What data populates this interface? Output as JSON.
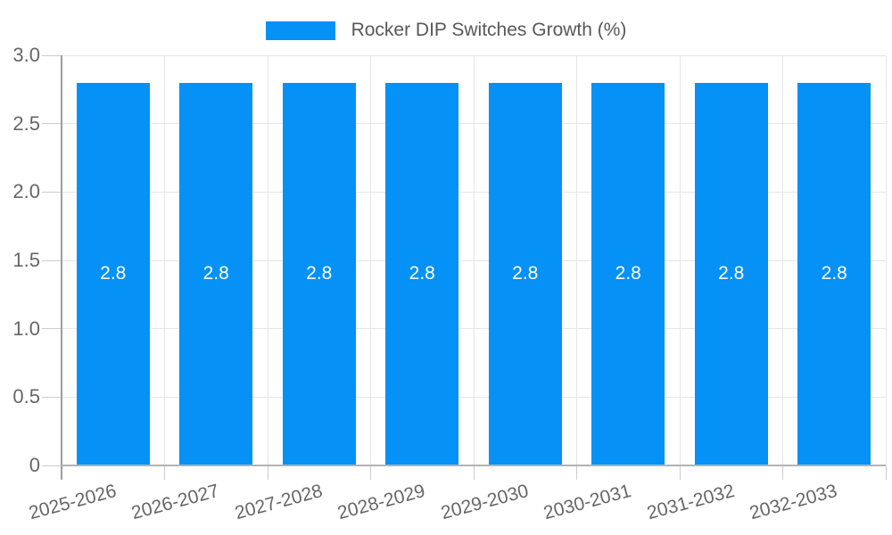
{
  "legend": {
    "items": [
      {
        "label": "Rocker DIP Switches Growth (%)",
        "color": "#0591f5"
      }
    ]
  },
  "chart_data": {
    "type": "bar",
    "title": "",
    "xlabel": "",
    "ylabel": "",
    "categories": [
      "2025-2026",
      "2026-2027",
      "2027-2028",
      "2028-2029",
      "2029-2030",
      "2030-2031",
      "2031-2032",
      "2032-2033"
    ],
    "series": [
      {
        "name": "Rocker DIP Switches Growth (%)",
        "color": "#0591f5",
        "values": [
          2.8,
          2.8,
          2.8,
          2.8,
          2.8,
          2.8,
          2.8,
          2.8
        ],
        "data_labels": [
          "2.8",
          "2.8",
          "2.8",
          "2.8",
          "2.8",
          "2.8",
          "2.8",
          "2.8"
        ]
      }
    ],
    "ylim": [
      0,
      3.0
    ],
    "yticks": [
      0,
      0.5,
      1.0,
      1.5,
      2.0,
      2.5,
      3.0
    ],
    "ytick_labels": [
      "0",
      "0.5",
      "1.0",
      "1.5",
      "2.0",
      "2.5",
      "3.0"
    ],
    "grid": true,
    "legend_position": "top",
    "x_tick_rotation_deg": -15,
    "data_label_position": "center"
  },
  "colors": {
    "bar": "#0591f5",
    "bar_label": "#ffffff",
    "grid": "#e6e6e6",
    "tick": "#cccccc",
    "y_axis": "#9e9e9e",
    "x_axis": "#b3b3b3",
    "axis_text": "#666666",
    "legend_text": "#58585a",
    "background": "#ffffff"
  }
}
